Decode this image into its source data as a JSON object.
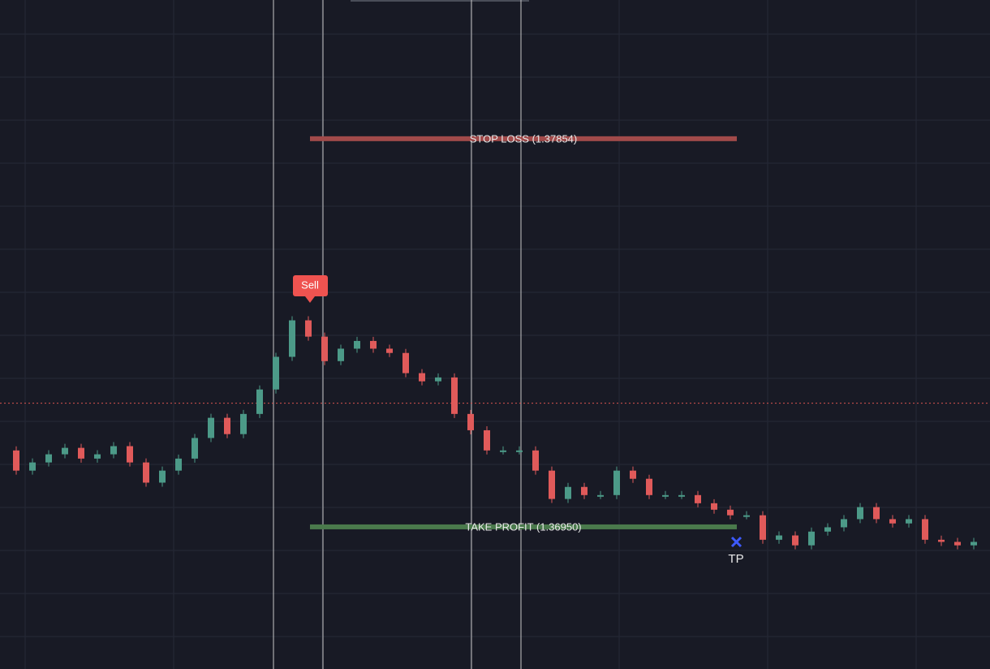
{
  "chart_data": {
    "type": "candlestick",
    "closes": [
      1.37128,
      1.37081,
      1.371,
      1.37119,
      1.37134,
      1.37109,
      1.37119,
      1.37138,
      1.371,
      1.37053,
      1.37081,
      1.37109,
      1.37157,
      1.37204,
      1.37166,
      1.37213,
      1.3727,
      1.37346,
      1.37431,
      1.37393,
      1.37336,
      1.37365,
      1.37383,
      1.37365,
      1.37355,
      1.37308,
      1.37289,
      1.37298,
      1.37213,
      1.37175,
      1.37128,
      1.37128,
      1.37128,
      1.37081,
      1.37015,
      1.37043,
      1.37024,
      1.37024,
      1.37081,
      1.37062,
      1.37024,
      1.37024,
      1.37024,
      1.37005,
      1.3699,
      1.36977,
      1.36977,
      1.3692,
      1.3693,
      1.36907,
      1.36939,
      1.36949,
      1.36968,
      1.36996,
      1.36968,
      1.36958,
      1.36968,
      1.3692,
      1.36915,
      1.36907,
      1.36915
    ],
    "up_color": "#4c9a88",
    "down_color": "#e05a5a",
    "ylim": [
      1.36619,
      1.38177
    ],
    "grid": true,
    "stop_loss": {
      "value": 1.37854,
      "label": "STOP LOSS (1.37854)",
      "color": "#a14a4a"
    },
    "take_profit": {
      "value": 1.3695,
      "label": "TAKE PROFIT (1.36950)",
      "color": "#4a7a4c"
    },
    "price_line": {
      "value": 1.37238,
      "color": "#d9534f"
    },
    "entry": {
      "label": "Sell",
      "color": "#ef5350"
    },
    "exit": {
      "label": "TP",
      "color": "#3d5afe"
    }
  }
}
